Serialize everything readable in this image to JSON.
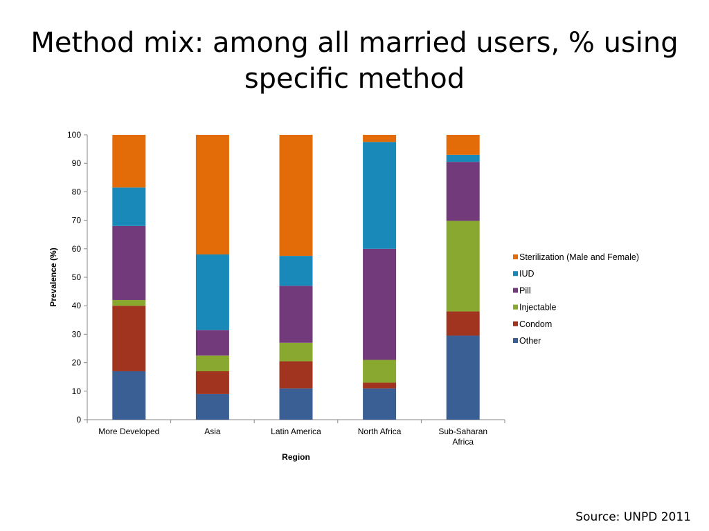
{
  "slide": {
    "title": "Method mix: among all married users, % using specific method",
    "source": "Source: UNPD 2011"
  },
  "chart_data": {
    "type": "bar",
    "stacked": true,
    "title": "",
    "xlabel": "Region",
    "ylabel": "Prevalence (%)",
    "ylim": [
      0,
      100
    ],
    "ytick_step": 10,
    "grid": false,
    "legend_position": "right",
    "categories": [
      "More Developed",
      "Asia",
      "Latin America",
      "North Africa",
      "Sub-Saharan Africa"
    ],
    "series": [
      {
        "name": "Other",
        "color": "#3A5F95",
        "values": [
          17,
          9,
          11,
          11,
          29.5
        ]
      },
      {
        "name": "Condom",
        "color": "#A0341F",
        "values": [
          23,
          8,
          9.5,
          2,
          8.5
        ]
      },
      {
        "name": "Injectable",
        "color": "#89A830",
        "values": [
          2,
          5.5,
          6.5,
          8,
          31.8
        ]
      },
      {
        "name": "Pill",
        "color": "#733A7B",
        "values": [
          26,
          9,
          20,
          39,
          20.7
        ]
      },
      {
        "name": "IUD",
        "color": "#1889B8",
        "values": [
          13.5,
          26.5,
          10.5,
          37.5,
          2.5
        ]
      },
      {
        "name": "Sterilization (Male and Female)",
        "color": "#E36C09",
        "values": [
          18.5,
          42,
          42.5,
          2.5,
          7
        ]
      }
    ]
  }
}
